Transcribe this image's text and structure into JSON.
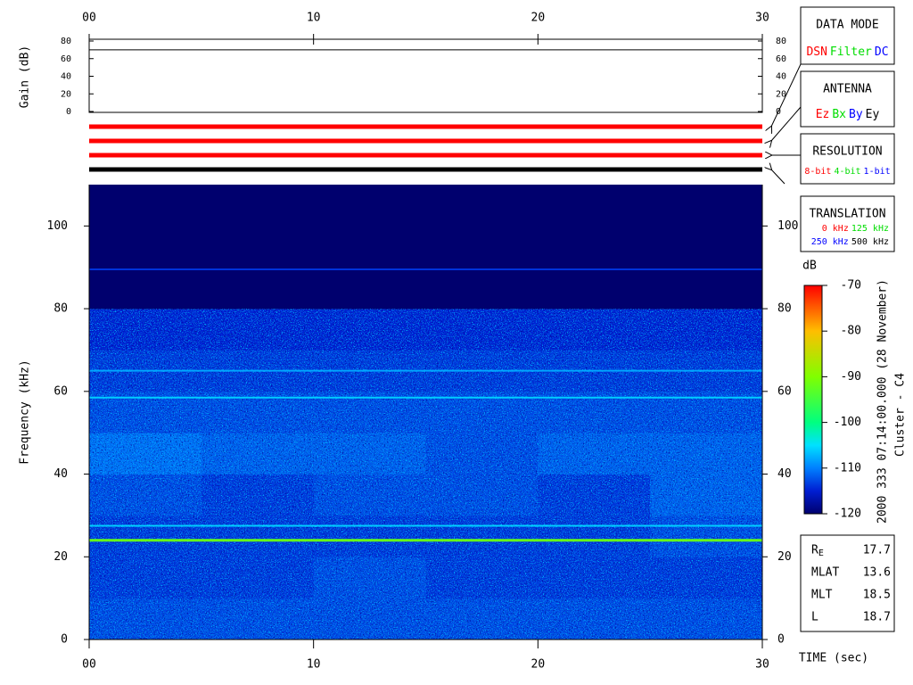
{
  "chart_data": [
    {
      "type": "line",
      "ylabel": "Gain (dB)",
      "xlim": [
        0,
        30
      ],
      "xticks": [
        {
          "value": 0,
          "label": "00"
        },
        10,
        20,
        30
      ],
      "ylim": [
        0,
        80
      ],
      "yticks": [
        0,
        20,
        40,
        60,
        80
      ],
      "x": [
        0,
        30
      ],
      "values": [
        70,
        70
      ],
      "color": "#000000"
    },
    {
      "type": "heatmap",
      "ylabel": "Frequency (kHz)",
      "xlabel": "TIME (sec)",
      "xlim": [
        0,
        30
      ],
      "xticks": [
        {
          "value": 0,
          "label": "00"
        },
        10,
        20,
        30
      ],
      "ylim": [
        0,
        110
      ],
      "yticks": [
        0,
        20,
        40,
        60,
        80,
        100
      ],
      "x_bins": [
        0,
        5,
        10,
        15,
        20,
        25,
        30
      ],
      "y_bins": [
        0,
        10,
        20,
        30,
        40,
        50,
        60,
        70,
        80,
        90,
        100,
        110
      ],
      "z": [
        [
          -113,
          -113,
          -113,
          -113,
          -113,
          -113
        ],
        [
          -114,
          -114,
          -113,
          -114,
          -114,
          -114
        ],
        [
          -114,
          -114,
          -114,
          -114,
          -114,
          -113
        ],
        [
          -113,
          -114,
          -113,
          -113,
          -114,
          -112
        ],
        [
          -111,
          -112,
          -112,
          -113,
          -112,
          -112
        ],
        [
          -113,
          -113,
          -113,
          -113,
          -113,
          -113
        ],
        [
          -114,
          -114,
          -114,
          -114,
          -114,
          -114
        ],
        [
          -115,
          -115,
          -115,
          -115,
          -115,
          -115
        ],
        [
          -120,
          -120,
          -120,
          -120,
          -120,
          -120
        ],
        [
          -120,
          -120,
          -120,
          -120,
          -120,
          -120
        ],
        [
          -120,
          -120,
          -120,
          -120,
          -120,
          -120
        ]
      ],
      "lines": [
        {
          "y": 24,
          "value": -92
        },
        {
          "y": 27.5,
          "value": -106
        },
        {
          "y": 58.5,
          "value": -106
        },
        {
          "y": 65,
          "value": -108
        },
        {
          "y": 89.5,
          "value": -114
        }
      ],
      "colorbar": {
        "label": "dB",
        "lim": [
          -120,
          -70
        ],
        "ticks": [
          -70,
          -80,
          -90,
          -100,
          -110,
          -120
        ]
      }
    }
  ],
  "mode_bars": [
    "#ff0000",
    "#ff0000",
    "#ff0000",
    "#000000"
  ],
  "panels": [
    {
      "title": "DATA MODE",
      "rows": [
        [
          {
            "text": "DSN",
            "color": "#ff0000"
          },
          {
            "text": "Filter",
            "color": "#00dd00"
          },
          {
            "text": "DC",
            "color": "#0000ff"
          }
        ]
      ]
    },
    {
      "title": "ANTENNA",
      "rows": [
        [
          {
            "text": "Ez",
            "color": "#ff0000"
          },
          {
            "text": "Bx",
            "color": "#00dd00"
          },
          {
            "text": "By",
            "color": "#0000ff"
          },
          {
            "text": "Ey",
            "color": "#000000"
          }
        ]
      ]
    },
    {
      "title": "RESOLUTION",
      "rows": [
        [
          {
            "text": "8-bit",
            "color": "#ff0000"
          },
          {
            "text": "4-bit",
            "color": "#00dd00"
          },
          {
            "text": "1-bit",
            "color": "#0000ff"
          }
        ]
      ]
    },
    {
      "title": "TRANSLATION",
      "rows": [
        [
          {
            "text": "0 kHz",
            "color": "#ff0000"
          },
          {
            "text": "125 kHz",
            "color": "#00dd00"
          }
        ],
        [
          {
            "text": "250 kHz",
            "color": "#0000ff"
          },
          {
            "text": "500 kHz",
            "color": "#000000"
          }
        ]
      ]
    }
  ],
  "stamp": "2000 333 07:14:00.000 (28 November)",
  "spacecraft": "Cluster - C4",
  "orbit": [
    {
      "label": "R",
      "sub": "E",
      "value": 17.7
    },
    {
      "label": "MLAT",
      "value": 13.6
    },
    {
      "label": "MLT",
      "value": 18.5
    },
    {
      "label": "L",
      "value": 18.7
    }
  ]
}
